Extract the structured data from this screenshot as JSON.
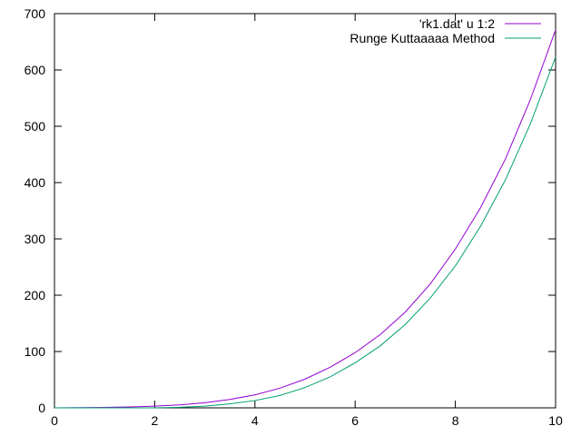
{
  "chart_data": {
    "type": "line",
    "title": "",
    "xlabel": "",
    "ylabel": "",
    "xlim": [
      0,
      10
    ],
    "ylim": [
      0,
      700
    ],
    "grid": false,
    "legend_position": "top-right",
    "x_ticks": [
      0,
      2,
      4,
      6,
      8,
      10
    ],
    "y_ticks": [
      0,
      100,
      200,
      300,
      400,
      500,
      600,
      700
    ],
    "x_tick_labels": [
      "0",
      "2",
      "4",
      "6",
      "8",
      "10"
    ],
    "y_tick_labels": [
      "0",
      "100",
      "200",
      "300",
      "400",
      "500",
      "600",
      "700"
    ],
    "series": [
      {
        "name": "'rk1.dat' u 1:2",
        "color": "#9400d3",
        "x": [
          0,
          0.5,
          1,
          1.5,
          2,
          2.5,
          3,
          3.5,
          4,
          4.5,
          5,
          5.5,
          6,
          6.5,
          7,
          7.5,
          8,
          8.5,
          9,
          9.5,
          10
        ],
        "y": [
          0,
          0.3,
          0.8,
          1.6,
          3.1,
          5.2,
          9,
          15,
          23,
          35,
          51,
          72,
          98,
          130,
          170,
          220,
          282,
          355,
          442,
          548,
          671
        ]
      },
      {
        "name": "Runge Kuttaaaaa Method",
        "color": "#009e73",
        "x": [
          0,
          0.5,
          1,
          1.5,
          2,
          2.5,
          3,
          3.5,
          4,
          4.5,
          5,
          5.5,
          6,
          6.5,
          7,
          7.5,
          8,
          8.5,
          9,
          9.5,
          10
        ],
        "y": [
          0,
          0,
          0,
          0,
          0,
          1,
          3,
          7,
          13,
          22,
          36,
          55,
          80,
          110,
          148,
          195,
          252,
          322,
          405,
          505,
          623
        ]
      }
    ]
  }
}
